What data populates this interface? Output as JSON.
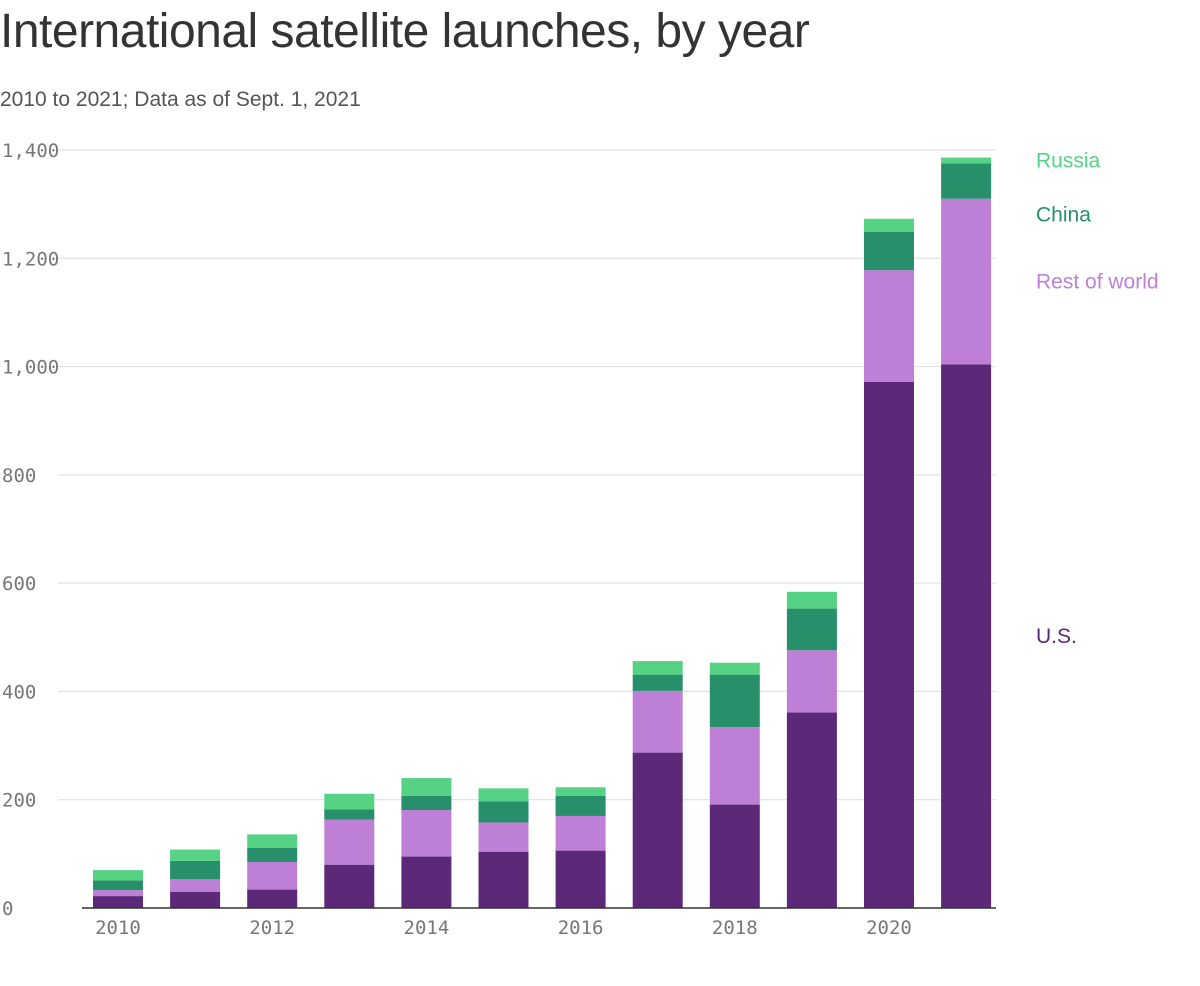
{
  "title": "International satellite launches, by year",
  "subtitle": "2010 to 2021; Data as of Sept. 1, 2021",
  "chart_data": {
    "type": "bar",
    "stacked": true,
    "categories": [
      "2010",
      "2011",
      "2012",
      "2013",
      "2014",
      "2015",
      "2016",
      "2017",
      "2018",
      "2019",
      "2020",
      "2021"
    ],
    "x_tick_labels": [
      "2010",
      "2012",
      "2014",
      "2016",
      "2018",
      "2020"
    ],
    "y_tick_labels": [
      "0",
      "200",
      "400",
      "600",
      "800",
      "1,000",
      "1,200",
      "1,400"
    ],
    "y_ticks": [
      0,
      200,
      400,
      600,
      800,
      1000,
      1200,
      1400
    ],
    "ylim": [
      0,
      1400
    ],
    "grid": true,
    "legend_placement": "right",
    "series": [
      {
        "name": "U.S.",
        "color": "#5c2878",
        "values": [
          22,
          30,
          34,
          80,
          95,
          104,
          106,
          287,
          191,
          361,
          972,
          1004
        ]
      },
      {
        "name": "Rest of world",
        "color": "#bd80d6",
        "values": [
          11,
          23,
          51,
          83,
          86,
          54,
          64,
          114,
          143,
          115,
          206,
          306
        ]
      },
      {
        "name": "China",
        "color": "#27906a",
        "values": [
          18,
          34,
          26,
          19,
          26,
          39,
          37,
          30,
          97,
          77,
          71,
          65
        ]
      },
      {
        "name": "Russia",
        "color": "#55d283",
        "values": [
          19,
          21,
          25,
          29,
          33,
          24,
          16,
          25,
          22,
          31,
          24,
          11
        ]
      }
    ],
    "legend_order": [
      "Russia",
      "China",
      "Rest of world",
      "U.S."
    ]
  }
}
